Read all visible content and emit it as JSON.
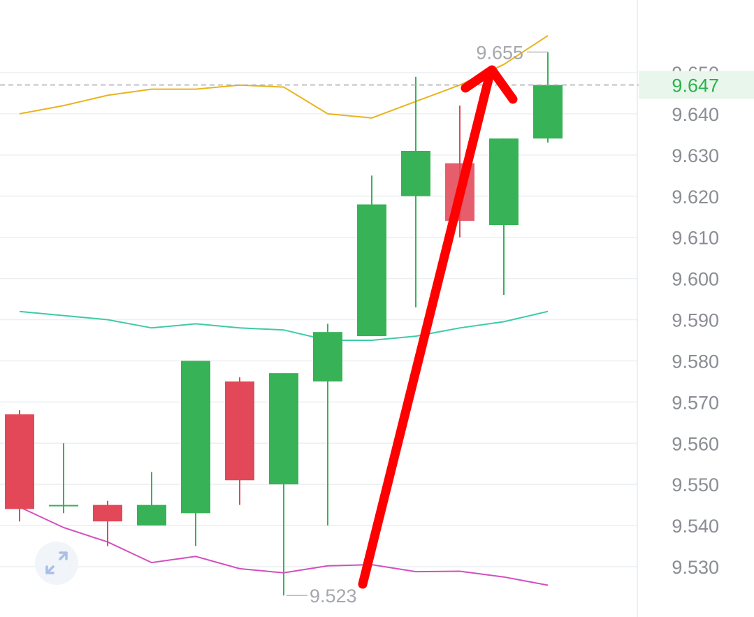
{
  "chart_data": {
    "type": "candlestick",
    "y_ticks": [
      "9.650",
      "9.640",
      "9.630",
      "9.620",
      "9.610",
      "9.600",
      "9.590",
      "9.580",
      "9.570",
      "9.560",
      "9.550",
      "9.540",
      "9.530"
    ],
    "ylim": [
      9.522,
      9.663
    ],
    "grid": true,
    "current_price": {
      "value": 9.647,
      "label": "9.647",
      "color": "#2bb24c"
    },
    "max_label": {
      "value": 9.655,
      "label": "9.655"
    },
    "min_label": {
      "value": 9.523,
      "label": "9.523"
    },
    "candles": [
      {
        "open": 9.567,
        "high": 9.568,
        "low": 9.541,
        "close": 9.544
      },
      {
        "open": 9.545,
        "high": 9.56,
        "low": 9.543,
        "close": 9.545
      },
      {
        "open": 9.545,
        "high": 9.546,
        "low": 9.535,
        "close": 9.541
      },
      {
        "open": 9.54,
        "high": 9.553,
        "low": 9.54,
        "close": 9.545
      },
      {
        "open": 9.543,
        "high": 9.58,
        "low": 9.535,
        "close": 9.58
      },
      {
        "open": 9.575,
        "high": 9.576,
        "low": 9.545,
        "close": 9.551
      },
      {
        "open": 9.55,
        "high": 9.577,
        "low": 9.523,
        "close": 9.577
      },
      {
        "open": 9.575,
        "high": 9.589,
        "low": 9.54,
        "close": 9.587
      },
      {
        "open": 9.586,
        "high": 9.625,
        "low": 9.586,
        "close": 9.618
      },
      {
        "open": 9.62,
        "high": 9.649,
        "low": 9.593,
        "close": 9.631
      },
      {
        "open": 9.628,
        "high": 9.642,
        "low": 9.61,
        "close": 9.614
      },
      {
        "open": 9.613,
        "high": 9.634,
        "low": 9.596,
        "close": 9.634
      },
      {
        "open": 9.634,
        "high": 9.655,
        "low": 9.633,
        "close": 9.647
      }
    ],
    "bollinger": {
      "upper": [
        9.64,
        9.642,
        9.6445,
        9.646,
        9.646,
        9.647,
        9.6465,
        9.64,
        9.639,
        9.643,
        9.647,
        9.652,
        9.659
      ],
      "middle": [
        9.592,
        9.591,
        9.59,
        9.588,
        9.589,
        9.588,
        9.5875,
        9.585,
        9.585,
        9.586,
        9.588,
        9.5895,
        9.592
      ],
      "lower": [
        9.5445,
        9.5395,
        9.536,
        9.531,
        9.5325,
        9.5295,
        9.5285,
        9.5302,
        9.5305,
        9.5288,
        9.5289,
        9.5275,
        9.5255
      ],
      "upper_color": "#e9b420",
      "middle_color": "#3fcaa6",
      "lower_color": "#d34fbe"
    },
    "colors": {
      "up": "#37b257",
      "down": "#e24858",
      "grid": "#eceff2",
      "annotation_arrow": "#ff0000"
    }
  }
}
